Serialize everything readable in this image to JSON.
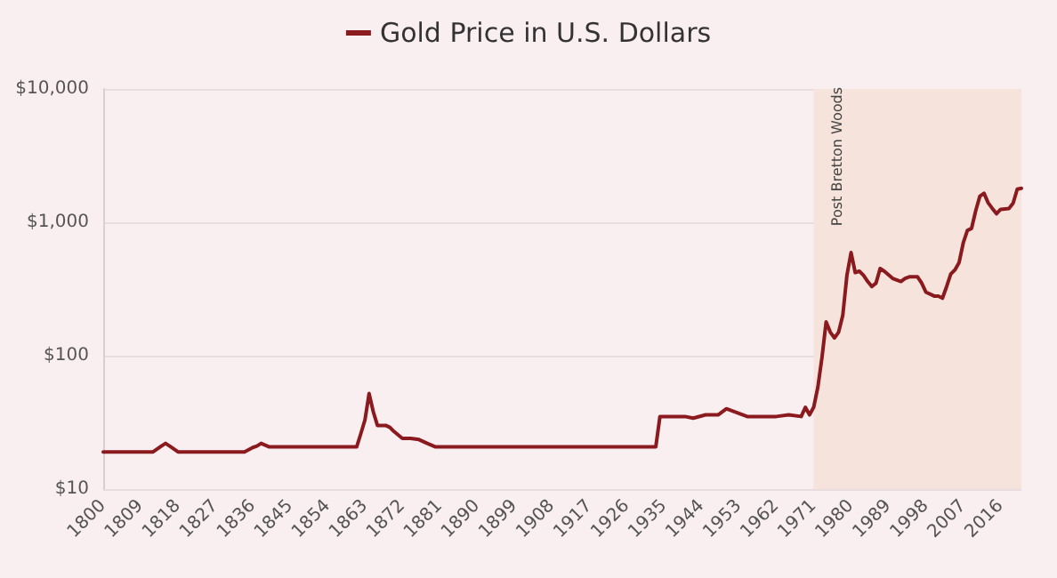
{
  "chart_data": {
    "type": "line",
    "x": [
      1800,
      1812,
      1814,
      1815,
      1816,
      1818,
      1834,
      1836,
      1837,
      1838,
      1840,
      1861,
      1862,
      1863,
      1864,
      1865,
      1866,
      1868,
      1869,
      1870,
      1872,
      1874,
      1876,
      1878,
      1880,
      1933,
      1934,
      1940,
      1942,
      1945,
      1948,
      1950,
      1952,
      1955,
      1960,
      1962,
      1965,
      1968,
      1969,
      1970,
      1971,
      1972,
      1973,
      1974,
      1975,
      1976,
      1977,
      1978,
      1979,
      1980,
      1981,
      1982,
      1983,
      1984,
      1985,
      1986,
      1987,
      1988,
      1990,
      1992,
      1993,
      1994,
      1996,
      1997,
      1998,
      2000,
      2001,
      2002,
      2003,
      2004,
      2005,
      2006,
      2007,
      2008,
      2009,
      2010,
      2011,
      2012,
      2013,
      2014,
      2015,
      2016,
      2017,
      2018,
      2019,
      2020,
      2021
    ],
    "series": [
      {
        "name": "Gold Price in U.S. Dollars",
        "color": "#8b1a1f",
        "values": [
          19,
          19,
          21,
          22,
          21,
          19,
          19,
          20.5,
          21,
          22,
          20.7,
          20.7,
          26,
          33,
          52,
          38,
          30,
          30,
          29,
          27,
          24,
          24,
          23.5,
          22,
          20.7,
          20.7,
          35,
          35,
          34,
          36,
          36,
          40,
          38,
          35,
          35,
          35,
          36,
          35,
          41,
          36,
          41,
          58,
          97,
          179,
          150,
          136,
          150,
          200,
          400,
          593,
          420,
          430,
          400,
          360,
          330,
          350,
          450,
          430,
          380,
          360,
          380,
          390,
          390,
          350,
          300,
          280,
          280,
          270,
          330,
          410,
          440,
          500,
          700,
          870,
          900,
          1220,
          1570,
          1650,
          1400,
          1270,
          1160,
          1250,
          1260,
          1270,
          1390,
          1770,
          1800
        ]
      }
    ],
    "xlim": [
      1800,
      2021
    ],
    "xticks": [
      1800,
      1809,
      1818,
      1827,
      1836,
      1845,
      1854,
      1863,
      1872,
      1881,
      1890,
      1899,
      1908,
      1917,
      1926,
      1935,
      1944,
      1953,
      1962,
      1971,
      1980,
      1989,
      1998,
      2007,
      2016
    ],
    "ylim": [
      10,
      10000
    ],
    "yticks": [
      {
        "value": 10,
        "label": "$10"
      },
      {
        "value": 100,
        "label": "$100"
      },
      {
        "value": 1000,
        "label": "$1,000"
      },
      {
        "value": 10000,
        "label": "$10,000"
      }
    ],
    "log": true,
    "grid": "y",
    "legend": "top",
    "marker": "none",
    "bands": [
      {
        "axis": "x",
        "from": 1971,
        "to": 2021,
        "label": "Post Bretton Woods",
        "color": "#f6e4dc"
      }
    ]
  }
}
